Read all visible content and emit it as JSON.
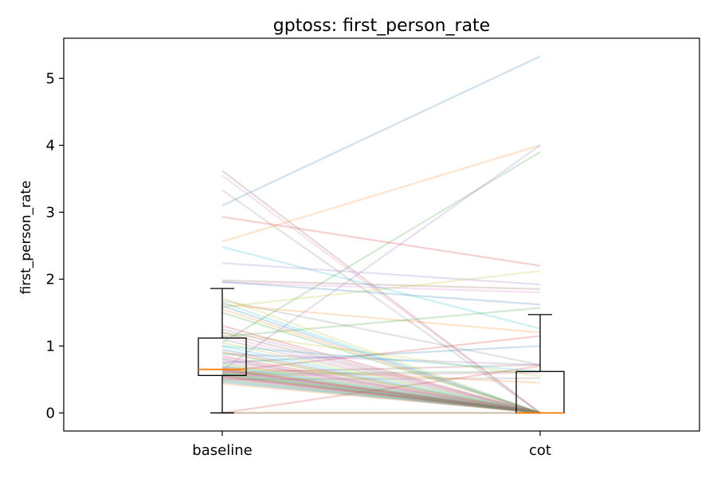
{
  "chart_data": {
    "type": "line",
    "title": "gptoss: first_person_rate",
    "xlabel": "",
    "ylabel": "first_person_rate",
    "categories": [
      "baseline",
      "cot"
    ],
    "ylim": [
      -0.27,
      5.6
    ],
    "yticks": [
      0,
      1,
      2,
      3,
      4,
      5
    ],
    "grid": false,
    "legend": "none",
    "overlay": "boxplot",
    "palette": [
      "#1f77b4",
      "#ff7f0e",
      "#2ca02c",
      "#d62728",
      "#9467bd",
      "#8c564b",
      "#e377c2",
      "#7f7f7f",
      "#bcbd22",
      "#17becf"
    ],
    "pairs": [
      [
        3.1,
        5.33
      ],
      [
        2.56,
        4.0
      ],
      [
        1.05,
        3.9
      ],
      [
        2.93,
        2.2
      ],
      [
        2.24,
        1.92
      ],
      [
        1.98,
        1.85
      ],
      [
        1.95,
        1.8
      ],
      [
        1.68,
        0.72
      ],
      [
        1.58,
        2.12
      ],
      [
        2.48,
        1.26
      ],
      [
        1.96,
        1.62
      ],
      [
        1.62,
        1.2
      ],
      [
        1.14,
        1.57
      ],
      [
        0.62,
        1.15
      ],
      [
        0.88,
        0.72
      ],
      [
        0.6,
        0.72
      ],
      [
        0.55,
        0.6
      ],
      [
        0.5,
        0.52
      ],
      [
        1.2,
        0.55
      ],
      [
        1.0,
        0.62
      ],
      [
        0.75,
        1.0
      ],
      [
        0.68,
        0.45
      ],
      [
        0.58,
        0.62
      ],
      [
        0.0,
        0.7
      ],
      [
        0.64,
        4.0
      ],
      [
        3.62,
        0.0
      ],
      [
        3.55,
        0.0
      ],
      [
        3.33,
        0.0
      ],
      [
        1.72,
        0.0
      ],
      [
        1.65,
        0.0
      ],
      [
        1.6,
        0.0
      ],
      [
        1.55,
        0.0
      ],
      [
        1.5,
        0.0
      ],
      [
        1.3,
        0.0
      ],
      [
        1.25,
        0.0
      ],
      [
        1.2,
        0.0
      ],
      [
        1.15,
        0.0
      ],
      [
        1.1,
        0.0
      ],
      [
        1.05,
        0.0
      ],
      [
        1.0,
        0.0
      ],
      [
        0.95,
        0.0
      ],
      [
        0.92,
        0.0
      ],
      [
        0.9,
        0.0
      ],
      [
        0.85,
        0.0
      ],
      [
        0.82,
        0.0
      ],
      [
        0.8,
        0.0
      ],
      [
        0.78,
        0.0
      ],
      [
        0.75,
        0.0
      ],
      [
        0.73,
        0.0
      ],
      [
        0.71,
        0.0
      ],
      [
        0.69,
        0.0
      ],
      [
        0.67,
        0.0
      ],
      [
        0.66,
        0.0
      ],
      [
        0.65,
        0.0
      ],
      [
        0.64,
        0.0
      ],
      [
        0.63,
        0.0
      ],
      [
        0.62,
        0.0
      ],
      [
        0.61,
        0.0
      ],
      [
        0.6,
        0.0
      ],
      [
        0.59,
        0.0
      ],
      [
        0.58,
        0.0
      ],
      [
        0.57,
        0.0
      ],
      [
        0.56,
        0.0
      ],
      [
        0.55,
        0.0
      ],
      [
        0.54,
        0.0
      ],
      [
        0.53,
        0.0
      ],
      [
        0.52,
        0.0
      ],
      [
        0.5,
        0.0
      ],
      [
        0.49,
        0.0
      ],
      [
        0.48,
        0.0
      ],
      [
        0.46,
        0.0
      ],
      [
        0.44,
        0.0
      ],
      [
        0.0,
        0.0
      ],
      [
        0.0,
        0.0
      ]
    ],
    "boxplots": [
      {
        "category": "baseline",
        "whisker_low": 0.0,
        "q1": 0.56,
        "median": 0.65,
        "q3": 1.12,
        "whisker_high": 1.86
      },
      {
        "category": "cot",
        "whisker_low": 0.0,
        "q1": 0.0,
        "median": 0.0,
        "q3": 0.62,
        "whisker_high": 1.47
      }
    ]
  }
}
